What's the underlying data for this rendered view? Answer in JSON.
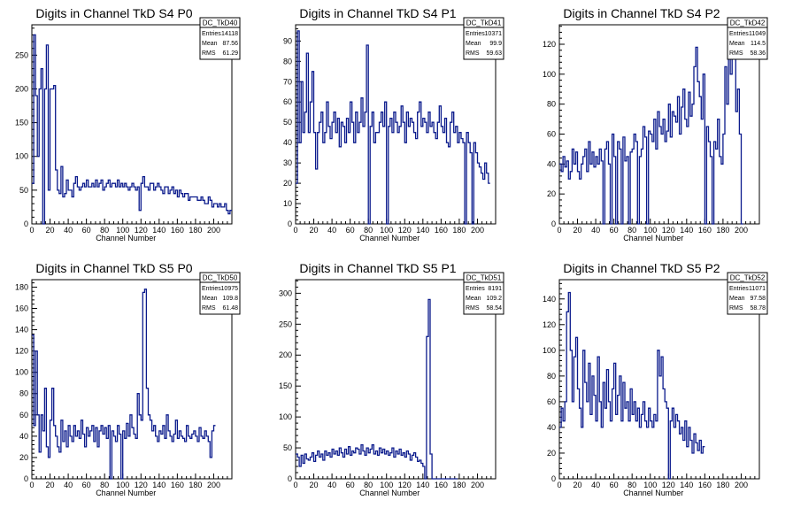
{
  "chart_data": [
    {
      "type": "histogram",
      "title": "Digits in Channel TkD S4 P0",
      "xlabel": "Channel Number",
      "xlim": [
        0,
        220
      ],
      "ylim": [
        0,
        295
      ],
      "xticks": [
        0,
        20,
        40,
        60,
        80,
        100,
        120,
        140,
        160,
        180,
        200
      ],
      "yticks": [
        0,
        50,
        100,
        150,
        200,
        250
      ],
      "stats": {
        "name": "DC_TkD40",
        "entries": "14118",
        "mean": "87.56",
        "rms": "61.29"
      },
      "bin_width": 2,
      "values": [
        60,
        280,
        190,
        100,
        200,
        230,
        0,
        200,
        265,
        50,
        200,
        200,
        205,
        80,
        50,
        45,
        85,
        40,
        45,
        65,
        50,
        50,
        40,
        60,
        70,
        55,
        50,
        55,
        60,
        55,
        65,
        55,
        55,
        60,
        55,
        65,
        55,
        60,
        65,
        50,
        55,
        60,
        65,
        55,
        60,
        60,
        55,
        65,
        55,
        60,
        55,
        60,
        55,
        50,
        55,
        60,
        55,
        50,
        55,
        20,
        60,
        70,
        55,
        55,
        50,
        60,
        60,
        50,
        55,
        60,
        55,
        50,
        45,
        55,
        55,
        45,
        50,
        55,
        45,
        50,
        40,
        50,
        45,
        40,
        45,
        45,
        35,
        40,
        40,
        40,
        40,
        35,
        35,
        40,
        35,
        30,
        30,
        40,
        35,
        25,
        30,
        30,
        25,
        30,
        25,
        25,
        30,
        20,
        15,
        20
      ]
    },
    {
      "type": "histogram",
      "title": "Digits in Channel TkD S4 P1",
      "xlabel": "Channel Number",
      "xlim": [
        0,
        220
      ],
      "ylim": [
        0,
        98
      ],
      "xticks": [
        0,
        20,
        40,
        60,
        80,
        100,
        120,
        140,
        160,
        180,
        200
      ],
      "yticks": [
        0,
        10,
        20,
        30,
        40,
        50,
        60,
        70,
        80,
        90
      ],
      "stats": {
        "name": "DC_TkD41",
        "entries": "10371",
        "mean": "99.9",
        "rms": "59.63"
      },
      "bin_width": 2,
      "values": [
        20,
        95,
        40,
        70,
        45,
        55,
        84,
        45,
        60,
        75,
        45,
        27,
        45,
        50,
        55,
        40,
        45,
        60,
        48,
        42,
        50,
        55,
        45,
        52,
        38,
        50,
        48,
        40,
        52,
        45,
        60,
        50,
        40,
        55,
        45,
        50,
        62,
        48,
        55,
        88,
        0,
        48,
        55,
        40,
        45,
        45,
        50,
        55,
        48,
        60,
        0,
        48,
        52,
        45,
        55,
        50,
        45,
        48,
        58,
        50,
        40,
        55,
        48,
        52,
        50,
        45,
        42,
        55,
        60,
        48,
        52,
        50,
        45,
        55,
        48,
        50,
        45,
        42,
        50,
        58,
        48,
        45,
        52,
        40,
        38,
        50,
        55,
        45,
        48,
        40,
        45,
        42,
        40,
        0,
        45,
        40,
        35,
        0,
        40,
        35,
        30,
        28,
        25,
        22,
        30,
        25,
        20
      ]
    },
    {
      "type": "histogram",
      "title": "Digits in Channel TkD S4 P2",
      "xlabel": "Channel Number",
      "xlim": [
        0,
        220
      ],
      "ylim": [
        0,
        133
      ],
      "xticks": [
        0,
        20,
        40,
        60,
        80,
        100,
        120,
        140,
        160,
        180,
        200
      ],
      "yticks": [
        0,
        20,
        40,
        60,
        80,
        100,
        120
      ],
      "stats": {
        "name": "DC_TkD42",
        "entries": "11049",
        "mean": "114.5",
        "rms": "58.36"
      },
      "bin_width": 2,
      "values": [
        40,
        35,
        45,
        38,
        42,
        30,
        35,
        50,
        40,
        48,
        35,
        30,
        40,
        45,
        50,
        35,
        55,
        40,
        48,
        38,
        45,
        40,
        50,
        42,
        0,
        50,
        55,
        40,
        0,
        60,
        45,
        0,
        55,
        50,
        0,
        58,
        42,
        45,
        0,
        48,
        50,
        60,
        55,
        0,
        45,
        50,
        65,
        58,
        0,
        62,
        60,
        55,
        70,
        50,
        75,
        65,
        60,
        70,
        55,
        62,
        80,
        58,
        75,
        72,
        68,
        85,
        60,
        78,
        90,
        70,
        65,
        88,
        72,
        80,
        105,
        118,
        95,
        85,
        70,
        100,
        0,
        65,
        55,
        45,
        0,
        55,
        50,
        70,
        45,
        40,
        60,
        105,
        80,
        120,
        100,
        110,
        120,
        75,
        90,
        60,
        0
      ]
    },
    {
      "type": "histogram",
      "title": "Digits in Channel TkD S5 P0",
      "xlabel": "Channel Number",
      "xlim": [
        0,
        220
      ],
      "ylim": [
        0,
        187
      ],
      "xticks": [
        0,
        20,
        40,
        60,
        80,
        100,
        120,
        140,
        160,
        180,
        200
      ],
      "yticks": [
        0,
        20,
        40,
        60,
        80,
        100,
        120,
        140,
        160,
        180
      ],
      "stats": {
        "name": "DC_TkD50",
        "entries": "10975",
        "mean": "109.8",
        "rms": "61.48"
      },
      "bin_width": 2,
      "values": [
        135,
        50,
        120,
        60,
        25,
        60,
        45,
        85,
        30,
        20,
        55,
        85,
        50,
        40,
        30,
        25,
        55,
        35,
        45,
        30,
        50,
        40,
        35,
        50,
        40,
        45,
        38,
        55,
        42,
        30,
        48,
        40,
        45,
        50,
        35,
        48,
        30,
        45,
        50,
        42,
        48,
        38,
        50,
        0,
        45,
        40,
        35,
        50,
        42,
        0,
        45,
        38,
        52,
        40,
        60,
        48,
        42,
        38,
        80,
        60,
        55,
        175,
        178,
        85,
        60,
        55,
        45,
        50,
        40,
        35,
        45,
        42,
        50,
        38,
        60,
        45,
        40,
        35,
        42,
        55,
        38,
        45,
        40,
        38,
        35,
        50,
        40,
        38,
        42,
        45,
        40,
        35,
        48,
        40,
        38,
        45,
        40,
        35,
        20,
        45,
        50
      ]
    },
    {
      "type": "histogram",
      "title": "Digits in Channel TkD S5 P1",
      "xlabel": "Channel Number",
      "xlim": [
        0,
        220
      ],
      "ylim": [
        0,
        322
      ],
      "xticks": [
        0,
        20,
        40,
        60,
        80,
        100,
        120,
        140,
        160,
        180,
        200
      ],
      "yticks": [
        0,
        50,
        100,
        150,
        200,
        250,
        300
      ],
      "stats": {
        "name": "DC_TkD51",
        "entries": "8191",
        "mean": "109.2",
        "rms": "58.54"
      },
      "bin_width": 2,
      "values": [
        40,
        35,
        20,
        38,
        25,
        40,
        32,
        30,
        35,
        42,
        28,
        38,
        45,
        35,
        40,
        30,
        45,
        38,
        42,
        35,
        48,
        40,
        45,
        38,
        50,
        42,
        35,
        48,
        40,
        52,
        38,
        45,
        42,
        50,
        48,
        40,
        55,
        45,
        38,
        50,
        42,
        48,
        55,
        40,
        45,
        38,
        50,
        42,
        48,
        40,
        45,
        38,
        42,
        50,
        35,
        45,
        40,
        48,
        38,
        42,
        35,
        45,
        40,
        30,
        38,
        42,
        35,
        28,
        30,
        25,
        20,
        0,
        230,
        290,
        40,
        0,
        0,
        0,
        0,
        0,
        0,
        0,
        0,
        0,
        0,
        0,
        0,
        0,
        0
      ]
    },
    {
      "type": "histogram",
      "title": "Digits in Channel TkD S5 P2",
      "xlabel": "Channel Number",
      "xlim": [
        0,
        220
      ],
      "ylim": [
        0,
        155
      ],
      "xticks": [
        0,
        20,
        40,
        60,
        80,
        100,
        120,
        140,
        160,
        180,
        200
      ],
      "yticks": [
        0,
        20,
        40,
        60,
        80,
        100,
        120,
        140
      ],
      "stats": {
        "name": "DC_TkD52",
        "entries": "11071",
        "mean": "97.58",
        "rms": "58.78"
      },
      "bin_width": 2,
      "values": [
        40,
        55,
        45,
        60,
        130,
        145,
        100,
        60,
        95,
        110,
        70,
        55,
        40,
        100,
        75,
        60,
        90,
        50,
        80,
        65,
        45,
        95,
        60,
        40,
        75,
        55,
        85,
        60,
        45,
        70,
        90,
        50,
        65,
        80,
        45,
        75,
        55,
        60,
        45,
        70,
        50,
        60,
        45,
        55,
        40,
        50,
        60,
        45,
        40,
        55,
        45,
        40,
        50,
        45,
        100,
        80,
        95,
        70,
        60,
        55,
        0,
        45,
        55,
        40,
        50,
        45,
        35,
        40,
        30,
        45,
        25,
        40,
        30,
        20,
        35,
        28,
        22,
        30,
        20,
        25
      ]
    }
  ]
}
